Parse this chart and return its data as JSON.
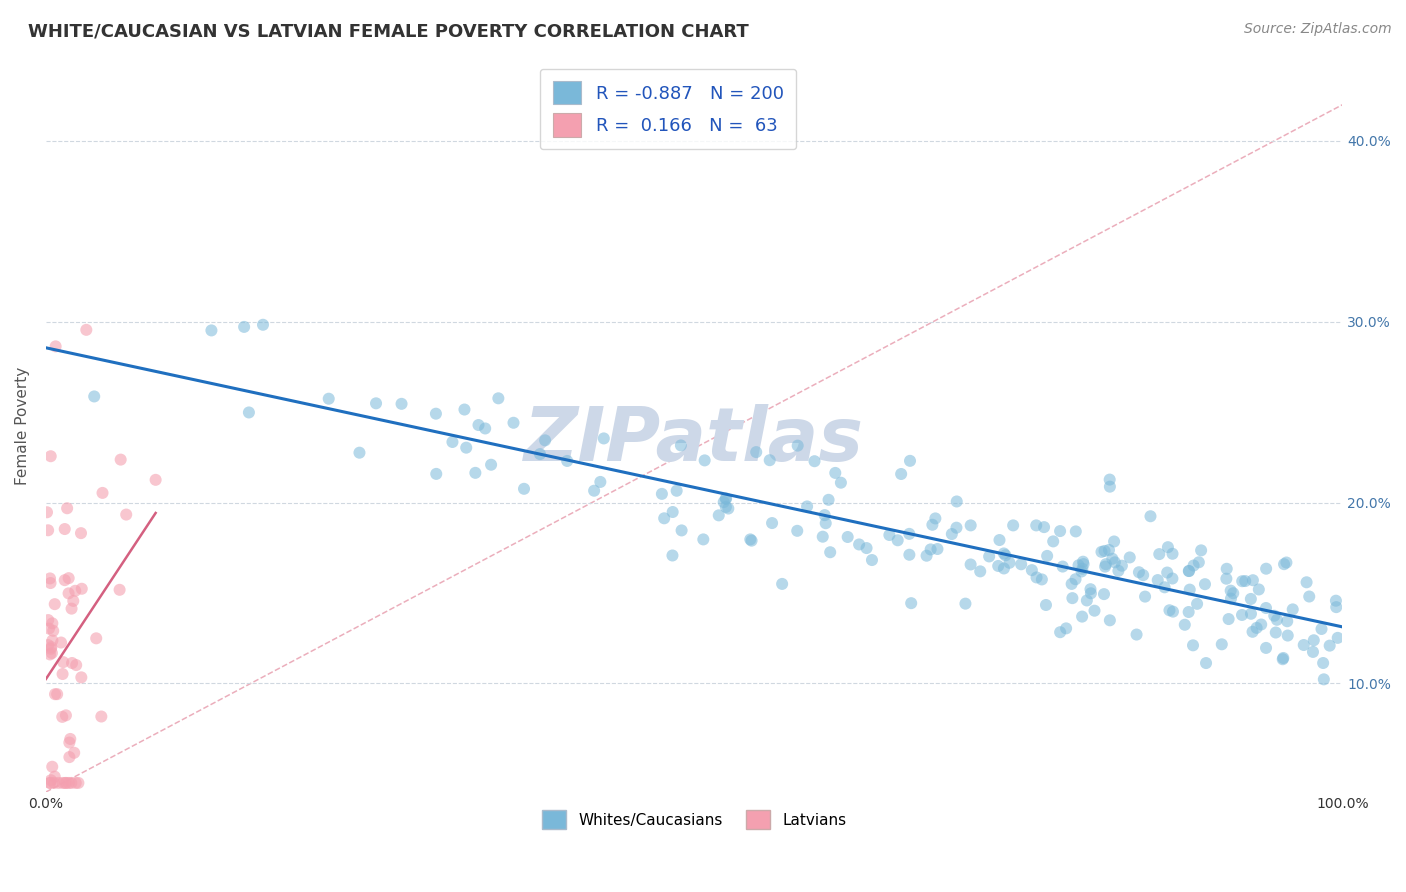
{
  "title": "WHITE/CAUCASIAN VS LATVIAN FEMALE POVERTY CORRELATION CHART",
  "source": "Source: ZipAtlas.com",
  "ylabel": "Female Poverty",
  "xlim": [
    0,
    1.0
  ],
  "ylim": [
    0.04,
    0.445
  ],
  "yticks": [
    0.1,
    0.2,
    0.3,
    0.4
  ],
  "ytick_labels": [
    "10.0%",
    "20.0%",
    "30.0%",
    "40.0%"
  ],
  "legend": {
    "blue_r": "-0.887",
    "blue_n": "200",
    "pink_r": "0.166",
    "pink_n": "63",
    "blue_label": "Whites/Caucasians",
    "pink_label": "Latvians"
  },
  "blue_color": "#7ab8d9",
  "pink_color": "#f4a0b0",
  "blue_line_color": "#1f6fbf",
  "pink_line_color": "#d46080",
  "diag_color": "#e8a0b0",
  "watermark": "ZIPatlas",
  "watermark_color": "#cdd8e8",
  "seed": 99,
  "blue_n": 200,
  "pink_n": 63,
  "title_fontsize": 13,
  "source_fontsize": 10,
  "axis_label_fontsize": 11,
  "tick_fontsize": 10,
  "legend_fontsize": 13
}
